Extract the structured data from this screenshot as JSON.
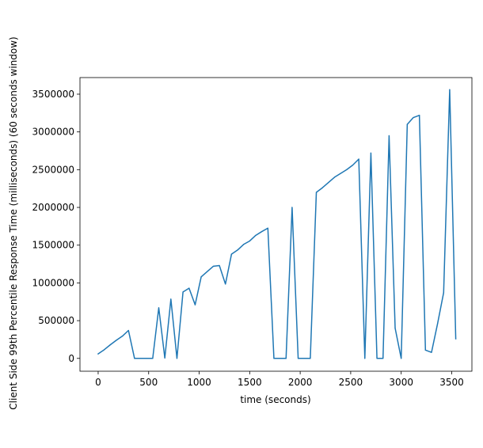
{
  "chart_data": {
    "type": "line",
    "xlabel": "time (seconds)",
    "ylabel": "Client Side 99th Percentile Response Time (milliseconds) (60 seconds window)",
    "xlim": [
      -180,
      3700
    ],
    "ylim": [
      -170000,
      3720000
    ],
    "xticks": [
      0,
      500,
      1000,
      1500,
      2000,
      2500,
      3000,
      3500
    ],
    "yticks": [
      0,
      500000,
      1000000,
      1500000,
      2000000,
      2500000,
      3000000,
      3500000
    ],
    "xtick_labels": [
      "0",
      "500",
      "1000",
      "1500",
      "2000",
      "2500",
      "3000",
      "3500"
    ],
    "ytick_labels": [
      "0",
      "500000",
      "1000000",
      "1500000",
      "2000000",
      "2500000",
      "3000000",
      "3500000"
    ],
    "grid": false,
    "colors": {
      "line": "#1f77b4"
    },
    "series": [
      {
        "x": [
          0,
          60,
          120,
          180,
          240,
          300,
          360,
          420,
          480,
          540,
          600,
          660,
          720,
          780,
          840,
          900,
          960,
          1020,
          1080,
          1140,
          1200,
          1260,
          1320,
          1380,
          1440,
          1500,
          1560,
          1620,
          1680,
          1740,
          1800,
          1860,
          1920,
          1980,
          2040,
          2100,
          2160,
          2220,
          2280,
          2340,
          2400,
          2460,
          2520,
          2580,
          2640,
          2700,
          2760,
          2820,
          2880,
          2940,
          3000,
          3060,
          3120,
          3180,
          3240,
          3300,
          3360,
          3420,
          3480,
          3540
        ],
        "y": [
          60000,
          115000,
          180000,
          240000,
          295000,
          370000,
          0,
          0,
          0,
          0,
          670000,
          5000,
          785000,
          0,
          880000,
          930000,
          710000,
          1080000,
          1150000,
          1220000,
          1230000,
          985000,
          1380000,
          1435000,
          1510000,
          1555000,
          1630000,
          1680000,
          1725000,
          0,
          0,
          0,
          2000000,
          0,
          0,
          0,
          2200000,
          2260000,
          2330000,
          2400000,
          2450000,
          2500000,
          2560000,
          2640000,
          0,
          2720000,
          0,
          0,
          2950000,
          400000,
          0,
          3100000,
          3190000,
          3220000,
          110000,
          80000,
          460000,
          870000,
          3560000,
          260000
        ]
      }
    ]
  }
}
